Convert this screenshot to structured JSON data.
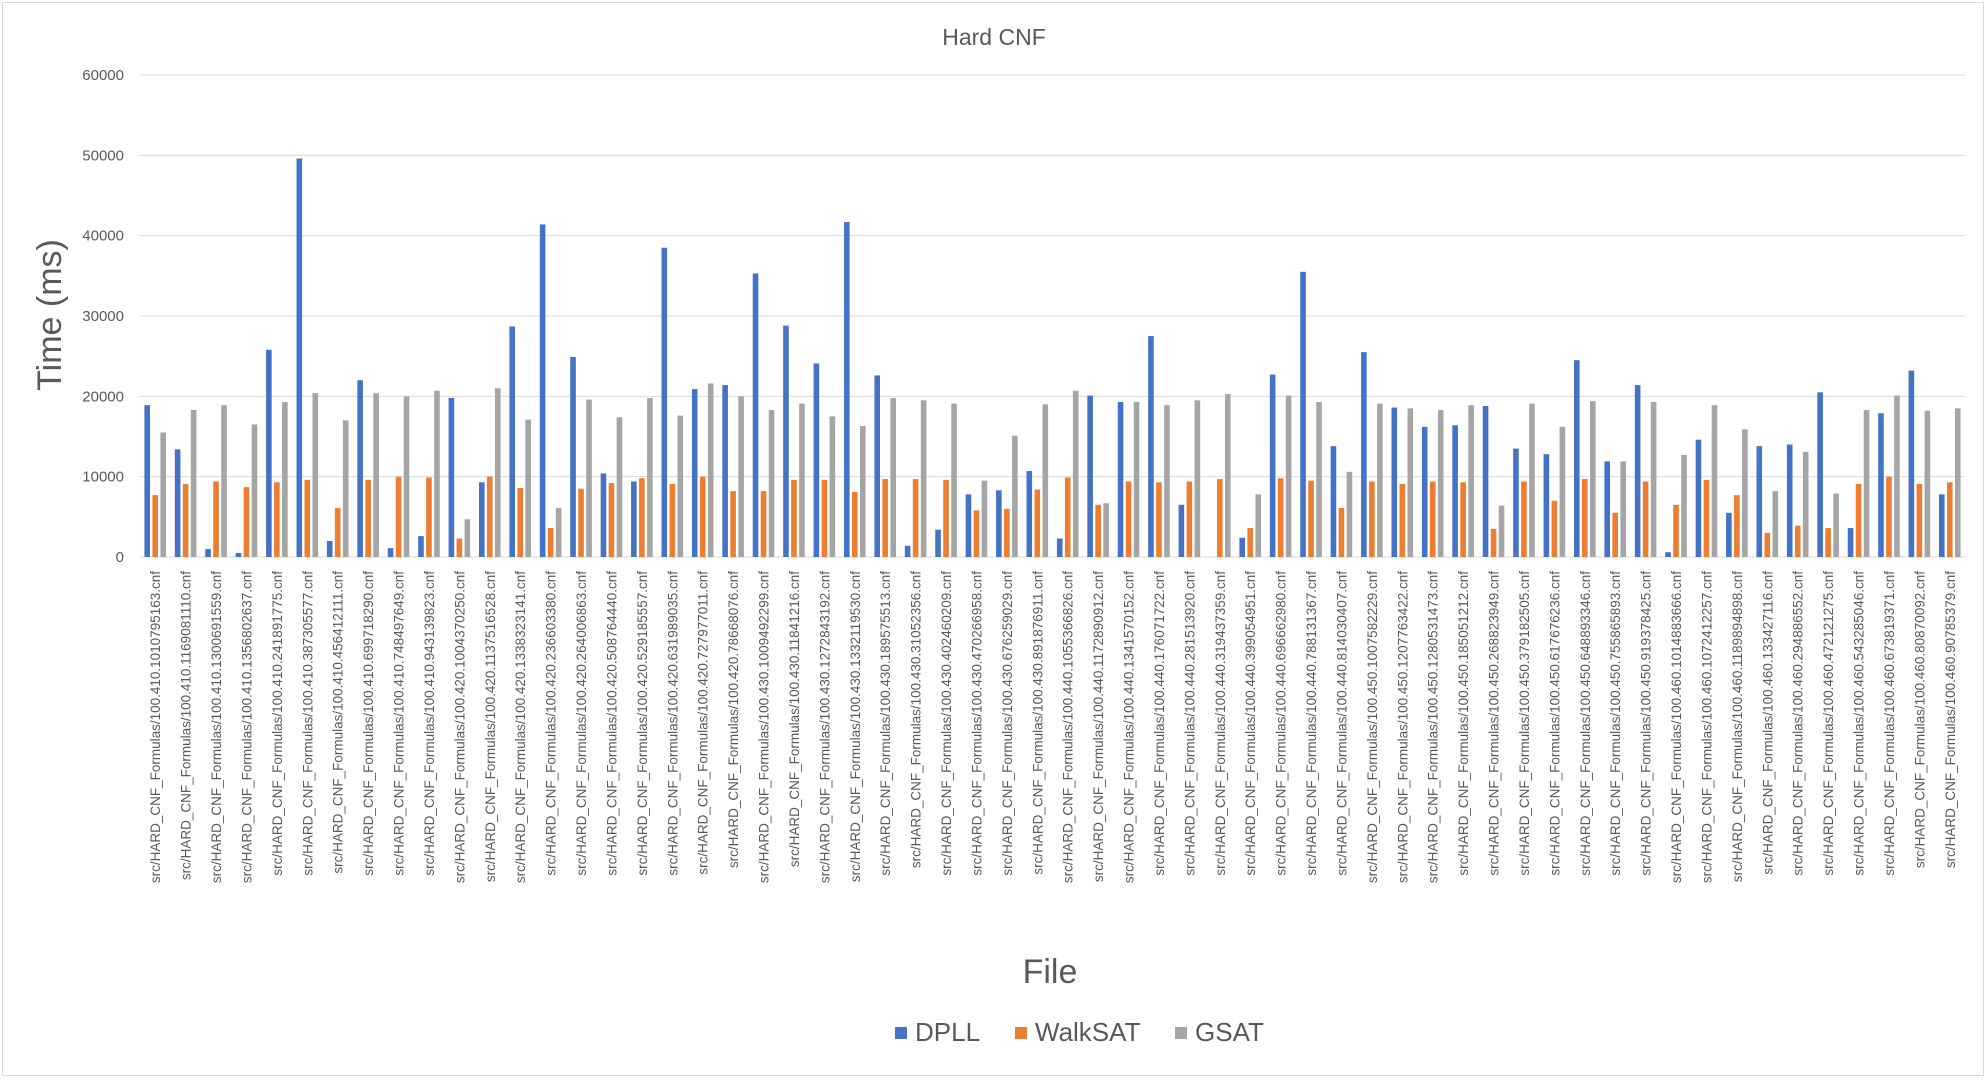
{
  "chart_data": {
    "type": "bar",
    "title": "Hard CNF",
    "xlabel": "File",
    "ylabel": "Time (ms)",
    "ylim": [
      0,
      60000
    ],
    "yticks": [
      "0",
      "10000",
      "20000",
      "30000",
      "40000",
      "50000",
      "60000"
    ],
    "grid": true,
    "legend_position": "bottom",
    "categories": [
      "src/HARD_CNF_Formulas/100.410.1010795163.cnf",
      "src/HARD_CNF_Formulas/100.410.1169081110.cnf",
      "src/HARD_CNF_Formulas/100.410.1300691559.cnf",
      "src/HARD_CNF_Formulas/100.410.1356802637.cnf",
      "src/HARD_CNF_Formulas/100.410.241891775.cnf",
      "src/HARD_CNF_Formulas/100.410.387305577.cnf",
      "src/HARD_CNF_Formulas/100.410.456412111.cnf",
      "src/HARD_CNF_Formulas/100.410.699718290.cnf",
      "src/HARD_CNF_Formulas/100.410.748497649.cnf",
      "src/HARD_CNF_Formulas/100.410.943139823.cnf",
      "src/HARD_CNF_Formulas/100.420.1004370250.cnf",
      "src/HARD_CNF_Formulas/100.420.1137516528.cnf",
      "src/HARD_CNF_Formulas/100.420.1338323141.cnf",
      "src/HARD_CNF_Formulas/100.420.236603380.cnf",
      "src/HARD_CNF_Formulas/100.420.264006863.cnf",
      "src/HARD_CNF_Formulas/100.420.508764440.cnf",
      "src/HARD_CNF_Formulas/100.420.529185557.cnf",
      "src/HARD_CNF_Formulas/100.420.631989035.cnf",
      "src/HARD_CNF_Formulas/100.420.727977011.cnf",
      "src/HARD_CNF_Formulas/100.420.78668076.cnf",
      "src/HARD_CNF_Formulas/100.430.1009492299.cnf",
      "src/HARD_CNF_Formulas/100.430.11841216.cnf",
      "src/HARD_CNF_Formulas/100.430.1272843192.cnf",
      "src/HARD_CNF_Formulas/100.430.1332119530.cnf",
      "src/HARD_CNF_Formulas/100.430.189575513.cnf",
      "src/HARD_CNF_Formulas/100.430.31052356.cnf",
      "src/HARD_CNF_Formulas/100.430.402460209.cnf",
      "src/HARD_CNF_Formulas/100.430.470266958.cnf",
      "src/HARD_CNF_Formulas/100.430.676259029.cnf",
      "src/HARD_CNF_Formulas/100.430.891876911.cnf",
      "src/HARD_CNF_Formulas/100.440.1055366826.cnf",
      "src/HARD_CNF_Formulas/100.440.1172890912.cnf",
      "src/HARD_CNF_Formulas/100.440.1341570152.cnf",
      "src/HARD_CNF_Formulas/100.440.176071722.cnf",
      "src/HARD_CNF_Formulas/100.440.281513920.cnf",
      "src/HARD_CNF_Formulas/100.440.319437359.cnf",
      "src/HARD_CNF_Formulas/100.440.399054951.cnf",
      "src/HARD_CNF_Formulas/100.440.696662980.cnf",
      "src/HARD_CNF_Formulas/100.440.788131367.cnf",
      "src/HARD_CNF_Formulas/100.440.814030407.cnf",
      "src/HARD_CNF_Formulas/100.450.1007582229.cnf",
      "src/HARD_CNF_Formulas/100.450.1207763422.cnf",
      "src/HARD_CNF_Formulas/100.450.1280531473.cnf",
      "src/HARD_CNF_Formulas/100.450.185051212.cnf",
      "src/HARD_CNF_Formulas/100.450.268823949.cnf",
      "src/HARD_CNF_Formulas/100.450.379182505.cnf",
      "src/HARD_CNF_Formulas/100.450.617676236.cnf",
      "src/HARD_CNF_Formulas/100.450.648893346.cnf",
      "src/HARD_CNF_Formulas/100.450.755865893.cnf",
      "src/HARD_CNF_Formulas/100.450.919378425.cnf",
      "src/HARD_CNF_Formulas/100.460.1014883666.cnf",
      "src/HARD_CNF_Formulas/100.460.1072412257.cnf",
      "src/HARD_CNF_Formulas/100.460.1189894898.cnf",
      "src/HARD_CNF_Formulas/100.460.133427116.cnf",
      "src/HARD_CNF_Formulas/100.460.294886552.cnf",
      "src/HARD_CNF_Formulas/100.460.472121275.cnf",
      "src/HARD_CNF_Formulas/100.460.543285046.cnf",
      "src/HARD_CNF_Formulas/100.460.673819371.cnf",
      "src/HARD_CNF_Formulas/100.460.80870092.cnf",
      "src/HARD_CNF_Formulas/100.460.90785379.cnf"
    ],
    "series": [
      {
        "name": "DPLL",
        "color": "#4472c4",
        "values": [
          18900,
          13400,
          1000,
          500,
          25800,
          49600,
          2000,
          22000,
          1100,
          2600,
          19800,
          9300,
          28700,
          41400,
          24900,
          10400,
          9400,
          38500,
          20900,
          21400,
          35300,
          28800,
          24100,
          41700,
          22600,
          1400,
          3400,
          7800,
          8300,
          10700,
          2300,
          20100,
          19300,
          27500,
          6500,
          0,
          2400,
          22700,
          35500,
          13800,
          25500,
          18600,
          16200,
          16400,
          18800,
          13500,
          12800,
          24500,
          11900,
          21400,
          600,
          14600,
          5500,
          13800,
          14000,
          20500,
          3600,
          17900,
          23200,
          7800
        ]
      },
      {
        "name": "WalkSAT",
        "color": "#ed7d31",
        "values": [
          7700,
          9100,
          9400,
          8700,
          9300,
          9600,
          6100,
          9600,
          10000,
          9900,
          2300,
          10000,
          8600,
          3600,
          8500,
          9200,
          9800,
          9100,
          10000,
          8200,
          8200,
          9600,
          9600,
          8100,
          9700,
          9700,
          9600,
          5800,
          6000,
          8400,
          9900,
          6500,
          9400,
          9300,
          9400,
          9700,
          3600,
          9800,
          9500,
          6100,
          9400,
          9100,
          9400,
          9300,
          3500,
          9400,
          7000,
          9700,
          5500,
          9400,
          6500,
          9600,
          7700,
          3000,
          3900,
          3600,
          9100,
          10000,
          9100,
          9300
        ]
      },
      {
        "name": "GSAT",
        "color": "#a5a5a5",
        "values": [
          15500,
          18300,
          18900,
          16500,
          19300,
          20400,
          17000,
          20400,
          20000,
          20700,
          4700,
          21000,
          17100,
          6100,
          19600,
          17400,
          19800,
          17600,
          21600,
          20000,
          18300,
          19100,
          17500,
          16300,
          19800,
          19500,
          19100,
          9500,
          15100,
          19000,
          20700,
          6700,
          19300,
          18900,
          19500,
          20300,
          7800,
          20100,
          19300,
          10600,
          19100,
          18500,
          18300,
          18900,
          6400,
          19100,
          16200,
          19400,
          11900,
          19300,
          12700,
          18900,
          15900,
          8200,
          13100,
          7900,
          18300,
          20100,
          18200,
          18500
        ]
      }
    ]
  }
}
